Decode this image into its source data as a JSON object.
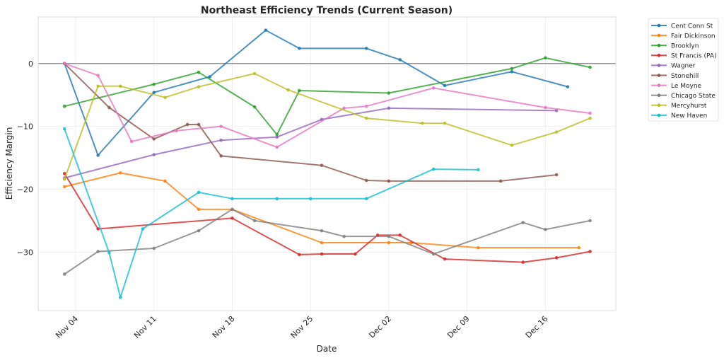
{
  "chart_data": {
    "type": "line",
    "title": "Northeast Efficiency Trends (Current Season)",
    "xlabel": "Date",
    "ylabel": "Efficiency Margin",
    "x_unit": "days offset from Nov 04",
    "xlim": [
      -3.35,
      48.3
    ],
    "ylim": [
      -39.3,
      7.4
    ],
    "grid": true,
    "reference_line_y": 0,
    "legend_position": "outside-top-right",
    "x_ticks": [
      {
        "value": 0,
        "label": "Nov 04"
      },
      {
        "value": 7,
        "label": "Nov 11"
      },
      {
        "value": 14,
        "label": "Nov 18"
      },
      {
        "value": 21,
        "label": "Nov 25"
      },
      {
        "value": 28,
        "label": "Dec 02"
      },
      {
        "value": 35,
        "label": "Dec 09"
      },
      {
        "value": 42,
        "label": "Dec 16"
      }
    ],
    "y_ticks": [
      {
        "value": 0,
        "label": "0"
      },
      {
        "value": -10,
        "label": "−10"
      },
      {
        "value": -20,
        "label": "−20"
      },
      {
        "value": -30,
        "label": "−30"
      }
    ],
    "series": [
      {
        "name": "Cent Conn St",
        "color": "#1f77b4",
        "x": [
          -1,
          2,
          7,
          12,
          17,
          20,
          26,
          29,
          33,
          39,
          44
        ],
        "values": [
          0,
          -14.6,
          -4.6,
          -2.1,
          5.3,
          2.4,
          2.4,
          0.6,
          -3.5,
          -1.3,
          -3.7
        ]
      },
      {
        "name": "Fair Dickinson",
        "color": "#ff7f0e",
        "x": [
          -1,
          4,
          8,
          11,
          14,
          22,
          28,
          30,
          36,
          45
        ],
        "values": [
          -19.6,
          -17.4,
          -18.7,
          -23.2,
          -23.2,
          -28.5,
          -28.5,
          -28.5,
          -29.3,
          -29.3
        ]
      },
      {
        "name": "Brooklyn",
        "color": "#2ca02c",
        "x": [
          -1,
          7,
          11,
          16,
          18,
          20,
          28,
          39,
          42,
          46
        ],
        "values": [
          -6.8,
          -3.3,
          -1.4,
          -6.9,
          -11.3,
          -4.3,
          -4.7,
          -0.8,
          0.9,
          -0.6
        ]
      },
      {
        "name": "St Francis (PA)",
        "color": "#d62728",
        "x": [
          -1,
          2,
          14,
          20,
          22,
          25,
          27,
          29,
          33,
          40,
          43,
          46
        ],
        "values": [
          -17.5,
          -26.3,
          -24.6,
          -30.4,
          -30.3,
          -30.3,
          -27.3,
          -27.3,
          -31.1,
          -31.6,
          -30.9,
          -29.9
        ]
      },
      {
        "name": "Wagner",
        "color": "#9467bd",
        "x": [
          -1,
          7,
          13,
          18,
          22,
          28,
          43
        ],
        "values": [
          -18.2,
          -14.5,
          -12.2,
          -11.7,
          -8.9,
          -7.1,
          -7.5
        ]
      },
      {
        "name": "Stonehill",
        "color": "#8c564b",
        "x": [
          -1,
          3,
          7,
          10,
          11,
          13,
          22,
          26,
          28,
          38,
          43
        ],
        "values": [
          0,
          -7.0,
          -12.0,
          -9.7,
          -9.7,
          -14.7,
          -16.2,
          -18.6,
          -18.7,
          -18.7,
          -17.7
        ]
      },
      {
        "name": "Le Moyne",
        "color": "#e377c2",
        "x": [
          -1,
          2,
          5,
          9,
          13,
          18,
          24,
          26,
          32,
          42,
          46
        ],
        "values": [
          0,
          -1.9,
          -12.4,
          -10.7,
          -10.0,
          -13.3,
          -7.1,
          -6.8,
          -3.9,
          -7.0,
          -7.9
        ]
      },
      {
        "name": "Chicago State",
        "color": "#7f7f7f",
        "x": [
          -1,
          2,
          7,
          11,
          14,
          16,
          22,
          24,
          28,
          32,
          40,
          42,
          46
        ],
        "values": [
          -33.5,
          -29.9,
          -29.4,
          -26.6,
          -23.2,
          -25.0,
          -26.6,
          -27.5,
          -27.5,
          -30.3,
          -25.3,
          -26.4,
          -25.0
        ]
      },
      {
        "name": "Mercyhurst",
        "color": "#bcbd22",
        "x": [
          -1,
          2,
          4,
          8,
          11,
          16,
          19,
          26,
          31,
          33,
          39,
          43,
          46
        ],
        "values": [
          -18.4,
          -3.6,
          -3.6,
          -5.4,
          -3.7,
          -1.6,
          -4.2,
          -8.7,
          -9.5,
          -9.5,
          -13.0,
          -10.9,
          -8.7
        ]
      },
      {
        "name": "New Haven",
        "color": "#17becf",
        "x": [
          -1,
          3,
          4,
          6,
          11,
          14,
          18,
          21,
          26,
          32,
          36
        ],
        "values": [
          -10.4,
          -30.1,
          -37.2,
          -26.3,
          -20.5,
          -21.5,
          -21.5,
          -21.5,
          -21.5,
          -16.8,
          -16.9
        ]
      }
    ]
  }
}
